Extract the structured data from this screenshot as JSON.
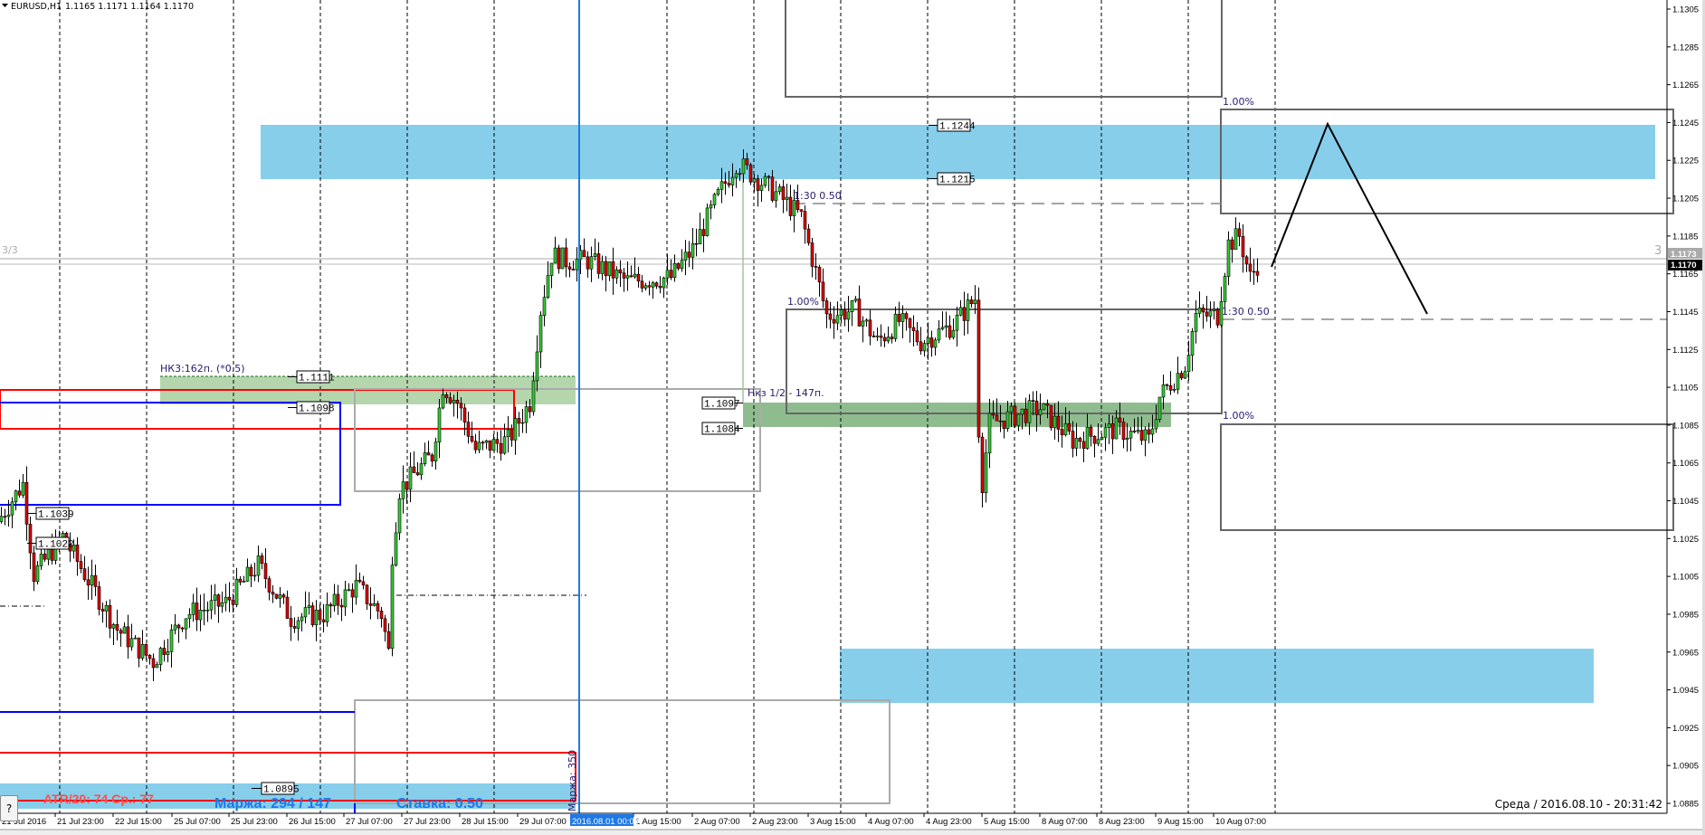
{
  "header": {
    "symbol": "EURUSD,H1",
    "ohlc": "1.1165 1.1171 1.1164 1.1170"
  },
  "colors": {
    "bull": "#33cc33",
    "bear": "#dd0000",
    "zone_blue": "#87ceeb",
    "zone_green_light": "#b5d6ad",
    "zone_green": "#8fbc8f",
    "text": "#2a1a6e",
    "margin_text": "#1e78e6",
    "atr_text": "#ff4d4d"
  },
  "price_axis": {
    "labels": [
      "1.1305",
      "1.1285",
      "1.1265",
      "1.1245",
      "1.1225",
      "1.1205",
      "1.1185",
      "1.1165",
      "1.1145",
      "1.1125",
      "1.1105",
      "1.1085",
      "1.1065",
      "1.1045",
      "1.1025",
      "1.1005",
      "1.0985",
      "1.0965",
      "1.0945",
      "1.0925",
      "1.0905",
      "1.0885"
    ],
    "bid_label": "1.1170",
    "ask_label": "1.1173"
  },
  "time_axis": {
    "labels": [
      "21 Jul 2016",
      "21 Jul 23:00",
      "22 Jul 15:00",
      "25 Jul 07:00",
      "25 Jul 23:00",
      "26 Jul 15:00",
      "27 Jul 07:00",
      "27 Jul 23:00",
      "28 Jul 15:00",
      "29 Jul 07:00",
      "1 Aug 15:00",
      "2 Aug 07:00",
      "2 Aug 23:00",
      "3 Aug 15:00",
      "4 Aug 07:00",
      "4 Aug 23:00",
      "5 Aug 15:00",
      "8 Aug 07:00",
      "8 Aug 23:00",
      "9 Aug 15:00",
      "10 Aug 07:00"
    ],
    "selected_label": "2016.08.01 00:00"
  },
  "chart_data": {
    "type": "candlestick",
    "symbol": "EURUSD",
    "timeframe": "H1",
    "ylim": [
      1.0885,
      1.1305
    ],
    "price_path": [
      [
        "2016-07-21 09:00",
        1.1034
      ],
      [
        "2016-07-21 16:00",
        1.1054
      ],
      [
        "2016-07-21 19:00",
        1.1006
      ],
      [
        "2016-07-22 03:00",
        1.1026
      ],
      [
        "2016-07-22 18:00",
        1.0977
      ],
      [
        "2016-07-25 04:00",
        1.096
      ],
      [
        "2016-07-25 13:00",
        1.0985
      ],
      [
        "2016-07-26 00:00",
        1.0991
      ],
      [
        "2016-07-26 09:00",
        1.1011
      ],
      [
        "2016-07-26 18:00",
        1.0983
      ],
      [
        "2016-07-27 03:00",
        1.0985
      ],
      [
        "2016-07-27 12:00",
        1.1
      ],
      [
        "2016-07-27 19:00",
        1.0985
      ],
      [
        "2016-07-27 21:00",
        1.0965
      ],
      [
        "2016-07-27 22:00",
        1.1017
      ],
      [
        "2016-07-28 00:00",
        1.1051
      ],
      [
        "2016-07-28 09:00",
        1.1069
      ],
      [
        "2016-07-28 12:00",
        1.1106
      ],
      [
        "2016-07-28 16:00",
        1.1097
      ],
      [
        "2016-07-28 21:00",
        1.1072
      ],
      [
        "2016-07-29 06:00",
        1.1077
      ],
      [
        "2016-07-29 12:00",
        1.1097
      ],
      [
        "2016-07-29 15:00",
        1.1146
      ],
      [
        "2016-07-29 18:00",
        1.1175
      ],
      [
        "2016-07-29 22:00",
        1.1172
      ],
      [
        "2016-08-01 03:00",
        1.1172
      ],
      [
        "2016-08-01 14:00",
        1.1161
      ],
      [
        "2016-08-02 02:00",
        1.1163
      ],
      [
        "2016-08-02 08:00",
        1.1178
      ],
      [
        "2016-08-02 15:00",
        1.1206
      ],
      [
        "2016-08-02 20:00",
        1.1224
      ],
      [
        "2016-08-03 02:00",
        1.1215
      ],
      [
        "2016-08-03 08:00",
        1.1206
      ],
      [
        "2016-08-03 14:00",
        1.1195
      ],
      [
        "2016-08-03 18:00",
        1.1166
      ],
      [
        "2016-08-03 21:00",
        1.1143
      ],
      [
        "2016-08-04 05:00",
        1.1146
      ],
      [
        "2016-08-04 11:00",
        1.1129
      ],
      [
        "2016-08-04 17:00",
        1.114
      ],
      [
        "2016-08-04 23:00",
        1.1129
      ],
      [
        "2016-08-05 08:00",
        1.1138
      ],
      [
        "2016-08-05 14:00",
        1.1152
      ],
      [
        "2016-08-05 15:00",
        1.1083
      ],
      [
        "2016-08-05 16:00",
        1.1055
      ],
      [
        "2016-08-05 18:00",
        1.1086
      ],
      [
        "2016-08-08 08:00",
        1.1094
      ],
      [
        "2016-08-08 17:00",
        1.1077
      ],
      [
        "2016-08-09 05:00",
        1.1083
      ],
      [
        "2016-08-09 14:00",
        1.1077
      ],
      [
        "2016-08-09 17:00",
        1.11
      ],
      [
        "2016-08-10 00:00",
        1.1117
      ],
      [
        "2016-08-10 03:00",
        1.1143
      ],
      [
        "2016-08-10 09:00",
        1.1143
      ],
      [
        "2016-08-10 12:00",
        1.1181
      ],
      [
        "2016-08-10 15:00",
        1.1185
      ],
      [
        "2016-08-10 18:00",
        1.1163
      ],
      [
        "2016-08-10 20:00",
        1.117
      ]
    ]
  },
  "annotations": {
    "nk3_label": "НК3:162п. (*0.5)",
    "nkz_label": "Нкз 1/2 - 147п.",
    "rr_label_1": "1:30 0.50",
    "rr_label_2": "1:30 0.50",
    "pct_1": "1.00%",
    "pct_2": "1.00%",
    "pct_3": "1.00%",
    "price_tags": [
      "1.1111",
      "1.1098",
      "1.1097",
      "1.1084",
      "1.1244",
      "1.1215",
      "1.1039",
      "1.1022",
      "1.0895"
    ],
    "left_counter": "3/3",
    "right_counter": "3",
    "vertical_margin": "Маржа: 350"
  },
  "info_panel": {
    "atr": "ATR/20: 74  Ср.: 77",
    "margin": "Маржа: 294 / 147",
    "rate": "Ставка: 0.50",
    "help_button": "?"
  },
  "status": {
    "datetime": "Среда  /  2016.08.10  -  20:31:42"
  }
}
